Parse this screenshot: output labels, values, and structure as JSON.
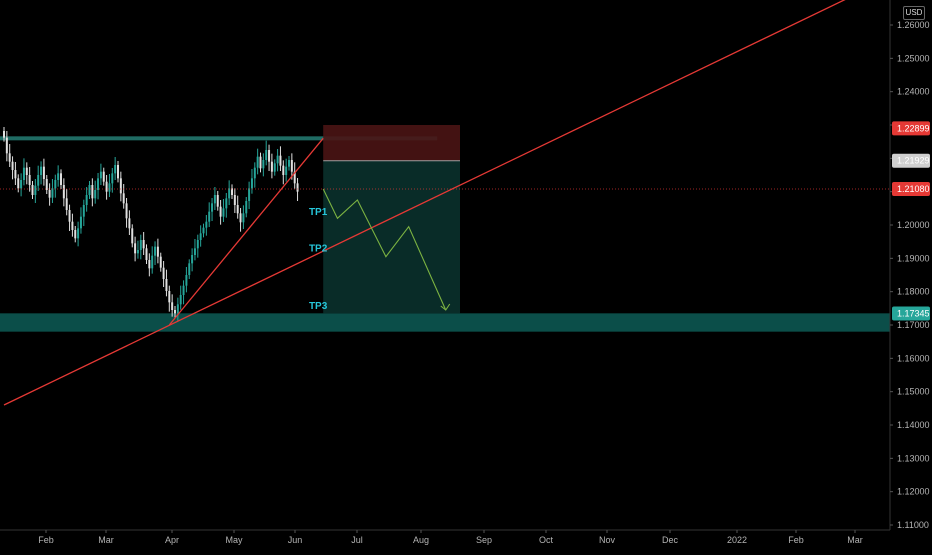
{
  "currency_label": "USD",
  "colors": {
    "background": "#000000",
    "bull_candle": "#26a69a",
    "bear_candle": "#e0e0e0",
    "trendline": "#e53935",
    "support_zone": "#0d5c56",
    "resistance_line": "#1f6b63",
    "stop_zone": "#4a1414",
    "target_zone": "#0a2e2a",
    "projection_path": "#7cb342",
    "last_price_badge": "#e53935",
    "entry_badge": "#cfcfcf",
    "stop_badge": "#e53935",
    "support_badge": "#26a69a",
    "tp_label": "#26c6da"
  },
  "chart_data": {
    "type": "candlestick",
    "price_axis": {
      "ticks": [
        "1.26000",
        "1.25000",
        "1.24000",
        "1.23000",
        "1.22000",
        "1.21000",
        "1.20000",
        "1.19000",
        "1.18000",
        "1.17000",
        "1.16000",
        "1.15000",
        "1.14000",
        "1.13000",
        "1.12000",
        "1.11000"
      ],
      "range": [
        1.1085,
        1.2675
      ]
    },
    "time_axis": {
      "ticks": [
        "Feb",
        "Mar",
        "Apr",
        "May",
        "Jun",
        "Jul",
        "Aug",
        "Sep",
        "Oct",
        "Nov",
        "Dec",
        "2022",
        "Feb",
        "Mar"
      ]
    },
    "price_badges": [
      {
        "label": "1.22899",
        "value": 1.22899,
        "kind": "stop"
      },
      {
        "label": "1.21929",
        "value": 1.21929,
        "kind": "entry"
      },
      {
        "label": "1.21080",
        "value": 1.2108,
        "kind": "last"
      },
      {
        "label": "1.17345",
        "value": 1.17345,
        "kind": "support"
      }
    ],
    "candles_close": [
      1.2262,
      1.2215,
      1.219,
      1.2165,
      1.214,
      1.211,
      1.2135,
      1.2172,
      1.215,
      1.212,
      1.209,
      1.2118,
      1.215,
      1.2175,
      1.2138,
      1.2105,
      1.2082,
      1.211,
      1.2135,
      1.2155,
      1.212,
      1.208,
      1.2045,
      1.201,
      1.1985,
      1.196,
      1.199,
      1.2025,
      1.206,
      1.209,
      1.212,
      1.208,
      1.2105,
      1.214,
      1.216,
      1.213,
      1.21,
      1.2125,
      1.2155,
      1.218,
      1.214,
      1.2095,
      1.2065,
      1.202,
      1.199,
      1.1945,
      1.1915,
      1.1925,
      1.1955,
      1.193,
      1.1895,
      1.187,
      1.1908,
      1.1935,
      1.1905,
      1.1872,
      1.1838,
      1.1802,
      1.1768,
      1.1745,
      1.1735,
      1.1762,
      1.179,
      1.1818,
      1.185,
      1.1885,
      1.191,
      1.193,
      1.1955,
      1.1975,
      1.1992,
      1.201,
      1.204,
      1.2065,
      1.209,
      1.2055,
      1.2025,
      1.205,
      1.208,
      1.211,
      1.209,
      1.206,
      1.2035,
      1.2008,
      1.2035,
      1.2072,
      1.211,
      1.214,
      1.2172,
      1.2205,
      1.217,
      1.2195,
      1.2225,
      1.219,
      1.216,
      1.2185,
      1.2208,
      1.2178,
      1.215,
      1.2175,
      1.2195,
      1.216,
      1.2125,
      1.21
    ],
    "levels": {
      "resistance": 1.226,
      "stop_top": 1.23,
      "support_top": 1.1735,
      "support_bottom": 1.168,
      "target_bottom": 1.1735
    },
    "trendlines": [
      {
        "name": "steep",
        "from": {
          "index": 58,
          "price": 1.17
        },
        "to": {
          "index": 112,
          "price": 1.226
        }
      },
      {
        "name": "long",
        "from": {
          "index": 0,
          "price": 1.146
        },
        "to": {
          "index": 296,
          "price": 1.268
        }
      }
    ],
    "projection": [
      {
        "index": 112,
        "price": 1.2108
      },
      {
        "index": 117,
        "price": 1.202
      },
      {
        "index": 124,
        "price": 1.2075
      },
      {
        "index": 134,
        "price": 1.1905
      },
      {
        "index": 142,
        "price": 1.1995
      },
      {
        "index": 155,
        "price": 1.1745
      }
    ],
    "targets": [
      {
        "label": "TP1",
        "price": 1.203
      },
      {
        "label": "TP2",
        "price": 1.192
      },
      {
        "label": "TP3",
        "price": 1.1748
      }
    ]
  }
}
